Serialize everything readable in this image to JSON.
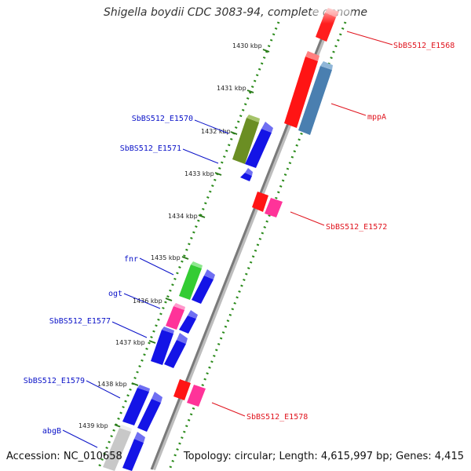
{
  "title": "Shigella boydii CDC 3083-94, complete genome",
  "footer": {
    "accession": "Accession: NC_010658",
    "summary": "Topology: circular; Length: 4,615,997 bp; Genes: 4,415"
  },
  "colors": {
    "left_label": "#0a12c8",
    "right_label": "#e0141e",
    "track_dots": "#2a8a1a",
    "backbone": "#808080"
  },
  "ticks": [
    {
      "kbp": 1430,
      "label": "1430 kbp"
    },
    {
      "kbp": 1431,
      "label": "1431 kbp"
    },
    {
      "kbp": 1432,
      "label": "1432 kbp"
    },
    {
      "kbp": 1433,
      "label": "1433 kbp"
    },
    {
      "kbp": 1434,
      "label": "1434 kbp"
    },
    {
      "kbp": 1435,
      "label": "1435 kbp"
    },
    {
      "kbp": 1436,
      "label": "1436 kbp"
    },
    {
      "kbp": 1437,
      "label": "1437 kbp"
    },
    {
      "kbp": 1438,
      "label": "1438 kbp"
    },
    {
      "kbp": 1439,
      "label": "1439 kbp"
    }
  ],
  "genes": {
    "right": [
      "SbBS512_E1568",
      "mppA",
      "SbBS512_E1572",
      "SbBS512_E1578"
    ],
    "left": [
      "SbBS512_E1570",
      "SbBS512_E1571",
      "fnr",
      "ogt",
      "SbBS512_E1577",
      "SbBS512_E1579",
      "abgB"
    ]
  },
  "features": [
    {
      "name": "SbBS512_E1568 (cds)",
      "color": "#ff2a2a"
    },
    {
      "name": "mppA (cds)",
      "color": "#ff1a1a"
    },
    {
      "name": "mppA (blast hit)",
      "color": "#4f86b8"
    },
    {
      "name": "SbBS512_E1570 (cds)",
      "color": "#6b8e23"
    },
    {
      "name": "SbBS512_E1570 (blast hit)",
      "color": "#1414e6"
    },
    {
      "name": "SbBS512_E1571 (cds)",
      "color": "#1414e6"
    },
    {
      "name": "SbBS512_E1572 (cds)",
      "color": "#ff1a1a"
    },
    {
      "name": "SbBS512_E1572 (blast hit)",
      "color": "#ff3399"
    },
    {
      "name": "fnr (cds)",
      "color": "#33cc33"
    },
    {
      "name": "fnr (blast hit)",
      "color": "#1414e6"
    },
    {
      "name": "ogt (cds)",
      "color": "#ff3399"
    },
    {
      "name": "ogt (blast hit)",
      "color": "#1414e6"
    },
    {
      "name": "SbBS512_E1577 (cds)",
      "color": "#1414e6"
    },
    {
      "name": "SbBS512_E1577 (blast hit)",
      "color": "#1414e6"
    },
    {
      "name": "SbBS512_E1578 (cds)",
      "color": "#ff1a1a"
    },
    {
      "name": "SbBS512_E1578 (blast hit)",
      "color": "#ff3399"
    },
    {
      "name": "SbBS512_E1579 (cds)",
      "color": "#1414e6"
    },
    {
      "name": "SbBS512_E1579 (blast hit)",
      "color": "#1414e6"
    },
    {
      "name": "abgB (cds)",
      "color": "#cccccc"
    },
    {
      "name": "abgB (blast hit)",
      "color": "#1414e6"
    }
  ]
}
